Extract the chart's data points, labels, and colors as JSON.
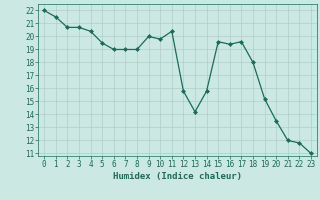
{
  "x": [
    0,
    1,
    2,
    3,
    4,
    5,
    6,
    7,
    8,
    9,
    10,
    11,
    12,
    13,
    14,
    15,
    16,
    17,
    18,
    19,
    20,
    21,
    22,
    23
  ],
  "y": [
    22,
    21.5,
    20.7,
    20.7,
    20.4,
    19.5,
    19.0,
    19.0,
    19.0,
    20.0,
    19.8,
    20.4,
    15.8,
    14.2,
    15.8,
    19.6,
    19.4,
    19.6,
    18.0,
    15.2,
    13.5,
    12.0,
    11.8,
    11.0
  ],
  "line_color": "#1a6b5a",
  "marker": "D",
  "marker_size": 2.0,
  "bg_color": "#cce8e3",
  "grid_color": "#b0cfc9",
  "xlabel": "Humidex (Indice chaleur)",
  "ylim": [
    10.8,
    22.5
  ],
  "xlim": [
    -0.5,
    23.5
  ],
  "yticks": [
    11,
    12,
    13,
    14,
    15,
    16,
    17,
    18,
    19,
    20,
    21,
    22
  ],
  "xticks": [
    0,
    1,
    2,
    3,
    4,
    5,
    6,
    7,
    8,
    9,
    10,
    11,
    12,
    13,
    14,
    15,
    16,
    17,
    18,
    19,
    20,
    21,
    22,
    23
  ],
  "tick_color": "#1a6b5a",
  "label_fontsize": 6.5,
  "tick_fontsize": 5.5,
  "linewidth": 0.9
}
